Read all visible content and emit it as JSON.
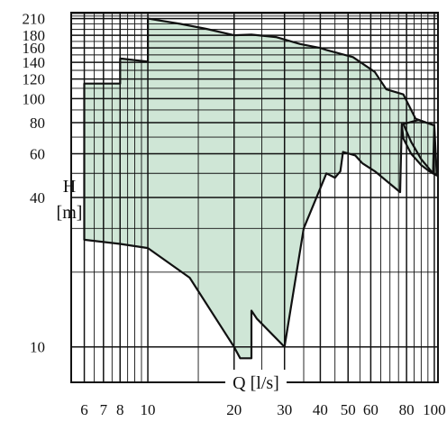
{
  "chart_data": {
    "type": "area",
    "xlabel": "Q [l/s]",
    "ylabel_symbol": "H",
    "ylabel_unit": "[m]",
    "x_scale": "log",
    "y_scale": "log",
    "xlim": [
      5.4,
      103
    ],
    "ylim": [
      7.2,
      222
    ],
    "x_ticks": [
      6,
      7,
      8,
      10,
      20,
      30,
      40,
      50,
      60,
      80,
      100
    ],
    "x_tick_labels": [
      "6",
      "7",
      "8",
      "10",
      "20",
      "30",
      "40",
      "50",
      "60",
      "80",
      "100"
    ],
    "y_ticks": [
      10,
      40,
      60,
      80,
      100,
      120,
      140,
      160,
      180,
      210
    ],
    "y_tick_labels": [
      "10",
      "40",
      "60",
      "80",
      "100",
      "120",
      "140",
      "160",
      "180",
      "210"
    ],
    "grid": true,
    "fill_color": "#cfe6d6",
    "outline_color": "#111111",
    "regions": [
      {
        "boundary": [
          [
            6,
            115
          ],
          [
            8,
            115
          ],
          [
            8,
            145
          ],
          [
            10,
            141
          ],
          [
            10,
            210
          ],
          [
            13,
            200
          ],
          [
            16,
            191
          ],
          [
            20,
            180
          ],
          [
            23,
            181
          ],
          [
            28,
            177
          ],
          [
            34,
            166
          ],
          [
            40,
            160
          ],
          [
            42,
            157
          ],
          [
            52,
            147
          ],
          [
            62,
            128
          ],
          [
            68,
            109
          ],
          [
            78,
            104
          ],
          [
            86,
            83
          ],
          [
            100,
            78
          ],
          [
            102,
            49
          ],
          [
            96,
            51
          ],
          [
            90,
            54
          ],
          [
            83,
            60
          ],
          [
            78,
            69
          ],
          [
            77,
            79
          ],
          [
            77,
            79
          ],
          [
            76,
            42
          ],
          [
            62,
            51
          ],
          [
            56,
            55
          ],
          [
            53,
            59
          ],
          [
            48,
            61
          ],
          [
            47,
            51
          ],
          [
            45,
            48
          ],
          [
            42,
            50
          ],
          [
            35,
            30
          ],
          [
            30,
            10
          ],
          [
            24,
            13
          ],
          [
            23,
            14
          ],
          [
            23,
            9
          ],
          [
            21,
            9
          ],
          [
            20,
            10
          ],
          [
            14,
            19
          ],
          [
            10,
            25
          ],
          [
            8,
            26
          ],
          [
            6,
            27
          ]
        ]
      },
      {
        "boundary": [
          [
            78,
            79
          ],
          [
            83,
            67
          ],
          [
            90,
            57
          ],
          [
            99,
            50
          ],
          [
            100,
            78
          ],
          [
            88,
            82
          ],
          [
            78,
            79
          ]
        ]
      }
    ]
  }
}
